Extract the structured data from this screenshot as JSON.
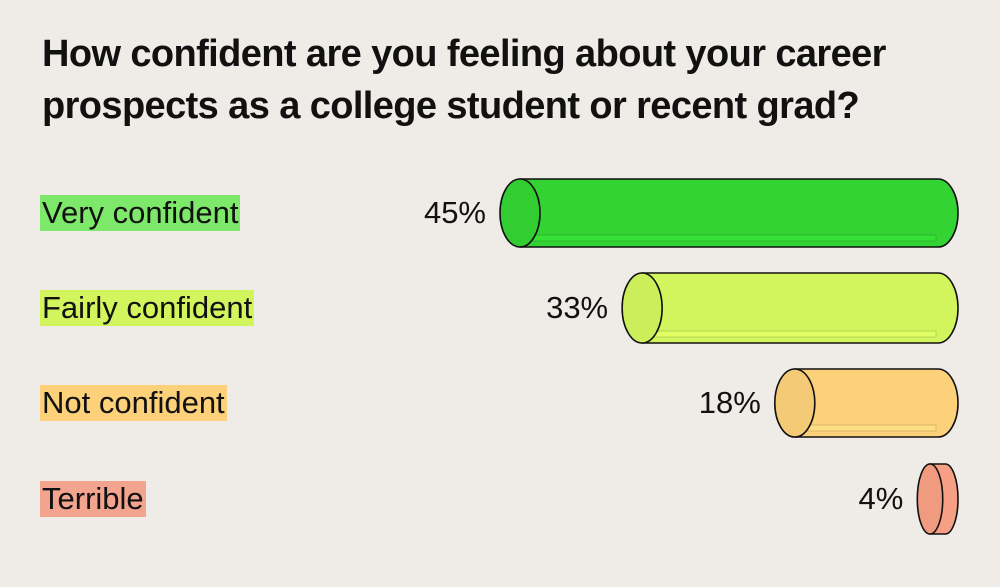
{
  "chart_data": {
    "type": "bar",
    "orientation": "horizontal",
    "title_lines": [
      "How confident are you feeling about your career",
      "prospects as a college student or recent grad?"
    ],
    "categories": [
      "Very confident",
      "Fairly confident",
      "Not confident",
      "Terrible"
    ],
    "values": [
      45,
      33,
      18,
      4
    ],
    "value_labels": [
      "45%",
      "33%",
      "18%",
      "4%"
    ],
    "unit": "%",
    "colors": [
      "#33d333",
      "#d2f55e",
      "#fdd07a",
      "#f79f84"
    ],
    "label_highlight_colors": [
      "#7ee86a",
      "#d2f55e",
      "#fdd07a",
      "#f2a48f"
    ],
    "background": "#efebe6",
    "xlim": [
      0,
      45
    ],
    "grid": false,
    "legend": "none",
    "style": "3d cylinder bars, right-aligned"
  }
}
